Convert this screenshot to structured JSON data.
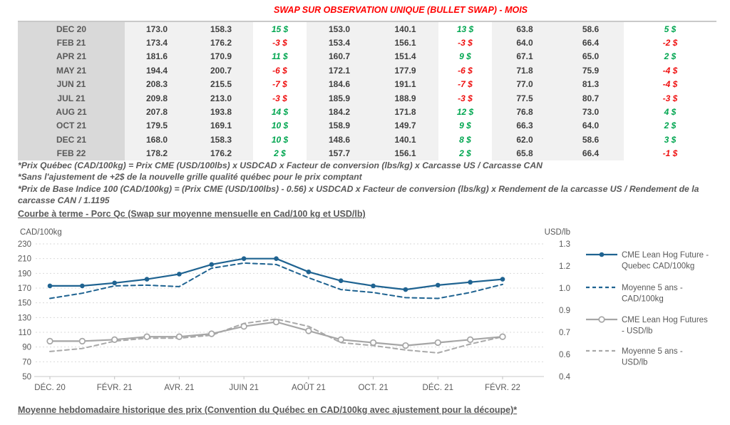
{
  "title": "SWAP SUR OBSERVATION UNIQUE (BULLET SWAP) - MOIS",
  "colors": {
    "title_red": "#ff0000",
    "positive_green": "#00a650",
    "negative_red": "#ef1010",
    "line_blue": "#1f6391",
    "line_gray": "#a6a6a6",
    "grid_gray": "#d9d9d9",
    "axis_text": "#595959"
  },
  "table": {
    "rows": [
      {
        "month": "DEC 20",
        "values": [
          "173.0",
          "158.3",
          "15 $",
          "153.0",
          "140.1",
          "13 $",
          "63.8",
          "58.6",
          "5 $"
        ]
      },
      {
        "month": "FEB 21",
        "values": [
          "173.4",
          "176.2",
          "-3 $",
          "153.4",
          "156.1",
          "-3 $",
          "64.0",
          "66.4",
          "-2 $"
        ]
      },
      {
        "month": "APR 21",
        "values": [
          "181.6",
          "170.9",
          "11 $",
          "160.7",
          "151.4",
          "9 $",
          "67.1",
          "65.0",
          "2 $"
        ]
      },
      {
        "month": "MAY 21",
        "values": [
          "194.4",
          "200.7",
          "-6 $",
          "172.1",
          "177.9",
          "-6 $",
          "71.8",
          "75.9",
          "-4 $"
        ]
      },
      {
        "month": "JUN 21",
        "values": [
          "208.3",
          "215.5",
          "-7 $",
          "184.6",
          "191.1",
          "-7 $",
          "77.0",
          "81.3",
          "-4 $"
        ]
      },
      {
        "month": "JUL 21",
        "values": [
          "209.8",
          "213.0",
          "-3 $",
          "185.9",
          "188.9",
          "-3 $",
          "77.5",
          "80.7",
          "-3 $"
        ]
      },
      {
        "month": "AUG 21",
        "values": [
          "207.8",
          "193.8",
          "14 $",
          "184.2",
          "171.8",
          "12 $",
          "76.8",
          "73.0",
          "4 $"
        ]
      },
      {
        "month": "OCT 21",
        "values": [
          "179.5",
          "169.1",
          "10 $",
          "158.9",
          "149.7",
          "9 $",
          "66.3",
          "64.0",
          "2 $"
        ]
      },
      {
        "month": "DEC 21",
        "values": [
          "168.0",
          "158.3",
          "10 $",
          "148.6",
          "140.1",
          "8 $",
          "62.0",
          "58.6",
          "3 $"
        ]
      },
      {
        "month": "FEB 22",
        "values": [
          "178.2",
          "176.2",
          "2 $",
          "157.7",
          "156.1",
          "2 $",
          "65.8",
          "66.4",
          "-1 $"
        ]
      }
    ]
  },
  "notes": [
    "*Prix Québec (CAD/100kg) = Prix CME (USD/100lbs) x USDCAD x Facteur de conversion (lbs/kg) x Carcasse US / Carcasse CAN",
    "*Sans l'ajustement de +2$ de la nouvelle grille qualité québec pour le prix comptant",
    "*Prix de Base Indice 100 (CAD/100kg) = (Prix CME (USD/100lbs) - 0.56) x USDCAD x Facteur de conversion (lbs/kg) x Rendement de la carcasse US /  Rendement de la carcasse CAN / 1.1195"
  ],
  "chart_heading": "Courbe à terme - Porc Qc (Swap sur moyenne mensuelle en Cad/100 kg et USD/lb)",
  "bottom_heading": "Moyenne hebdomadaire historique des prix (Convention du Québec en CAD/100kg avec ajustement pour la découpe)*",
  "chart_data": {
    "type": "line",
    "title": "Courbe à terme - Porc Qc (Swap sur moyenne mensuelle en Cad/100 kg et USD/lb)",
    "x_months": [
      "DÉC. 20",
      "JANV. 21",
      "FÉVR. 21",
      "MARS 21",
      "AVR. 21",
      "MAI 21",
      "JUIN 21",
      "JUIL. 21",
      "AOÛT 21",
      "SEPT. 21",
      "OCT. 21",
      "NOV. 21",
      "DÉC. 21",
      "JANV. 22",
      "FÉVR. 22"
    ],
    "x_tick_labels": [
      "DÉC. 20",
      "FÉVR. 21",
      "AVR. 21",
      "JUIN 21",
      "AOÛT 21",
      "OCT. 21",
      "DÉC. 21",
      "FÉVR. 22"
    ],
    "x_tick_indices": [
      0,
      2,
      4,
      6,
      8,
      10,
      12,
      14
    ],
    "left_axis": {
      "label": "CAD/100kg",
      "ticks": [
        230,
        210,
        190,
        170,
        150,
        130,
        110,
        90,
        70,
        50
      ],
      "range": [
        50,
        230
      ]
    },
    "right_axis": {
      "label": "USD/lb",
      "tick_labels": [
        "1.3",
        "1.2",
        "1.0",
        "0.9",
        "0.7",
        "0.6",
        "0.4"
      ],
      "range": [
        0.4,
        1.3
      ]
    },
    "grid": true,
    "legend_position": "right",
    "series": [
      {
        "name": "CME Lean Hog Future - Quebec CAD/100kg",
        "legend_lines": [
          "CME Lean Hog Future -",
          "Quebec CAD/100kg"
        ],
        "axis": "left",
        "style": "solid",
        "marker": "filled-circle",
        "color": "#1f6391",
        "values": [
          173,
          173,
          177,
          182,
          189,
          202,
          210,
          210,
          192,
          180,
          173,
          168,
          174,
          178,
          182
        ]
      },
      {
        "name": "Moyenne 5 ans - CAD/100kg",
        "legend_lines": [
          "Moyenne 5 ans -",
          "CAD/100kg"
        ],
        "axis": "left",
        "style": "dashed",
        "marker": "none",
        "color": "#1f6391",
        "values": [
          156,
          163,
          173,
          174,
          172,
          197,
          204,
          202,
          184,
          168,
          164,
          157,
          156,
          164,
          175
        ]
      },
      {
        "name": "CME Lean Hog Futures - USD/lb",
        "legend_lines": [
          "CME Lean Hog Futures",
          "- USD/lb"
        ],
        "axis": "right",
        "style": "solid",
        "marker": "open-circle",
        "color": "#a6a6a6",
        "values": [
          0.64,
          0.64,
          0.65,
          0.67,
          0.67,
          0.69,
          0.74,
          0.77,
          0.71,
          0.65,
          0.63,
          0.61,
          0.63,
          0.65,
          0.67
        ]
      },
      {
        "name": "Moyenne 5 ans - USD/lb",
        "legend_lines": [
          "Moyenne 5 ans -",
          "USD/lb"
        ],
        "axis": "right",
        "style": "dashed",
        "marker": "none",
        "color": "#a9a9a9",
        "values": [
          0.57,
          0.59,
          0.64,
          0.66,
          0.66,
          0.68,
          0.76,
          0.79,
          0.74,
          0.63,
          0.61,
          0.58,
          0.56,
          0.62,
          0.67
        ]
      }
    ]
  }
}
